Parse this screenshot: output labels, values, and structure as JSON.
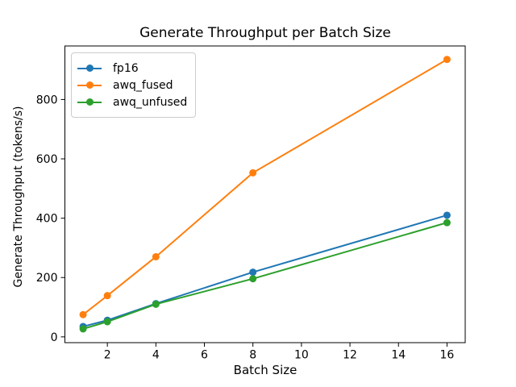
{
  "chart_data": {
    "type": "line",
    "title": "Generate Throughput per Batch Size",
    "xlabel": "Batch Size",
    "ylabel": "Generate Throughput (tokens/s)",
    "x": [
      1,
      2,
      4,
      8,
      16
    ],
    "series": [
      {
        "name": "fp16",
        "color": "#1f77b4",
        "values": [
          35,
          56,
          112,
          218,
          410
        ]
      },
      {
        "name": "awq_fused",
        "color": "#ff7f0e",
        "values": [
          75,
          139,
          270,
          553,
          935
        ]
      },
      {
        "name": "awq_unfused",
        "color": "#2ca02c",
        "values": [
          27,
          51,
          110,
          196,
          385
        ]
      }
    ],
    "xticks": [
      2,
      4,
      6,
      8,
      10,
      12,
      14,
      16
    ],
    "yticks": [
      0,
      200,
      400,
      600,
      800
    ],
    "xlim": [
      0.25,
      16.75
    ],
    "ylim": [
      -19.5,
      980.5
    ],
    "grid": false,
    "legend_position": "upper left",
    "axis_color": "#000000",
    "background": "#ffffff"
  }
}
